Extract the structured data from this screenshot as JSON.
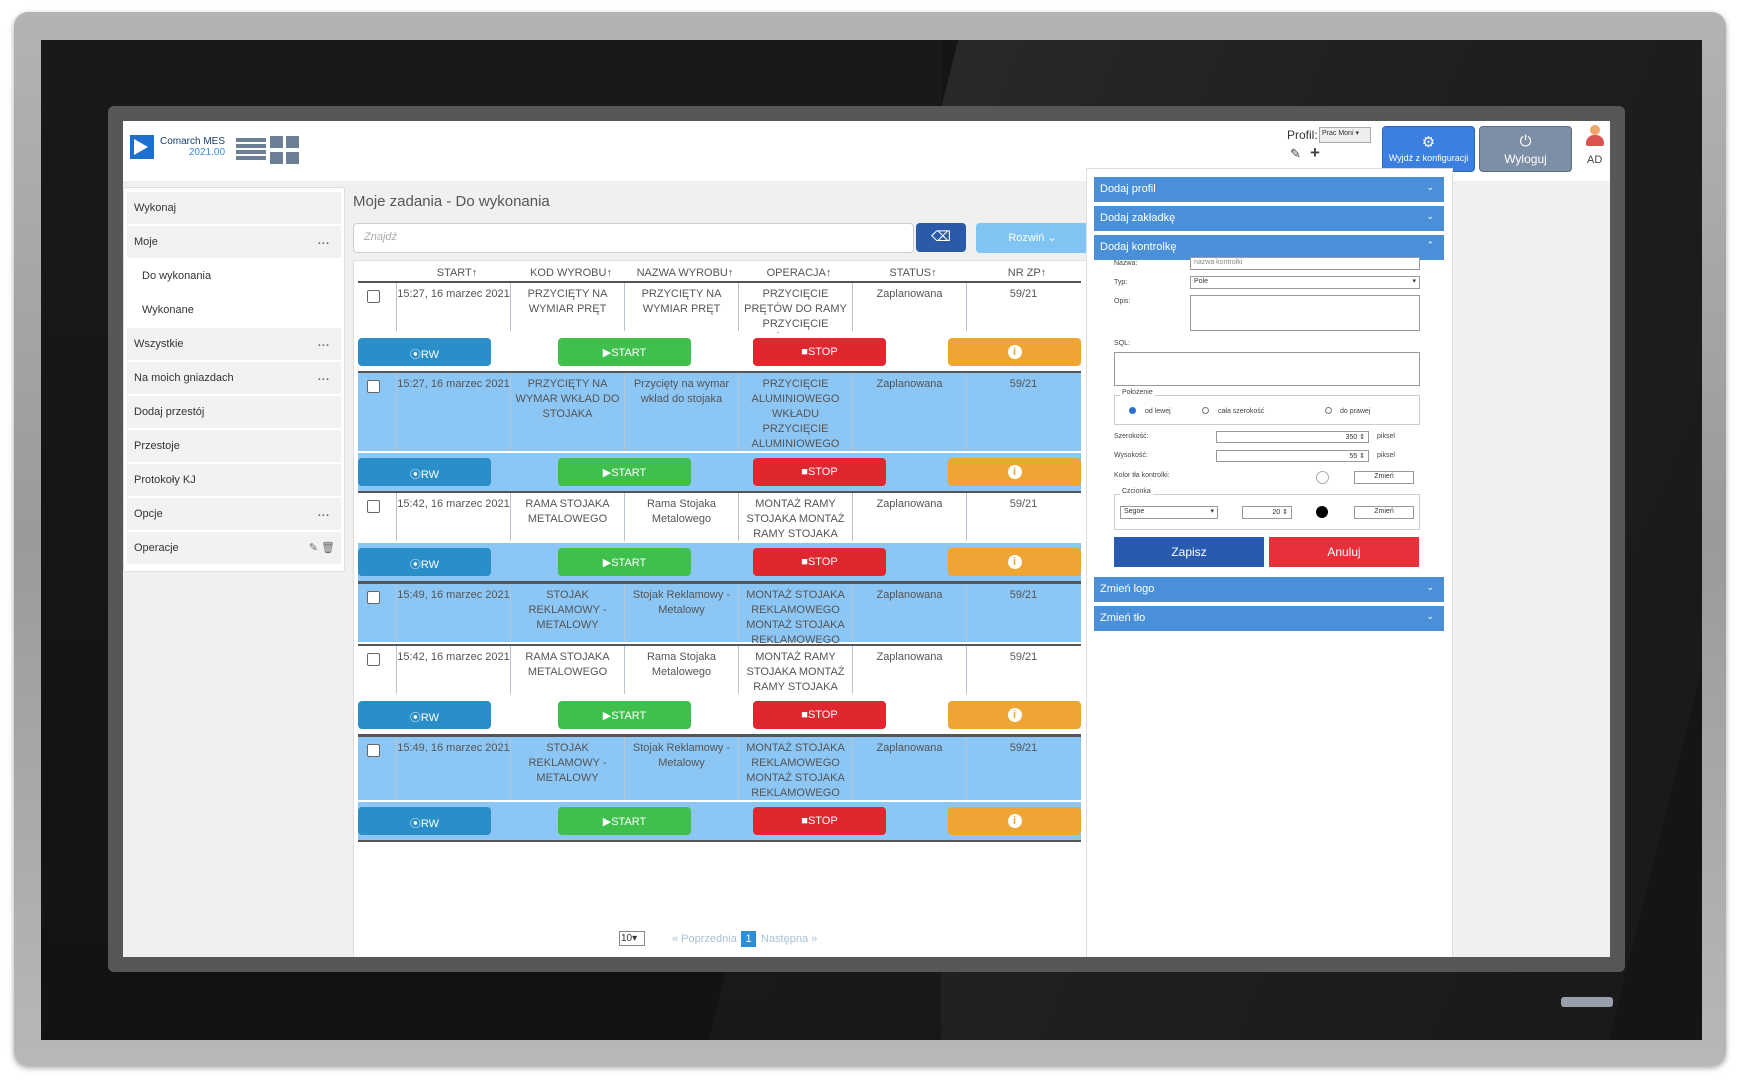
{
  "app": {
    "logo_text": "Comarch MES",
    "logo_version": "2021.00",
    "profil_label": "Profil:",
    "profil_value": "Prac Moni",
    "exit_config_label": "Wyjdź z konfiguracji",
    "logout_label": "Wyloguj",
    "user_initials": "AD"
  },
  "sidebar": {
    "items": [
      {
        "label": "Wykonaj"
      },
      {
        "label": "Moje",
        "dots": "..."
      },
      {
        "label": "Do wykonania"
      },
      {
        "label": "Wykonane"
      },
      {
        "label": "Wszystkie",
        "dots": "..."
      },
      {
        "label": "Na moich gniazdach",
        "dots": "..."
      },
      {
        "label": "Dodaj przestój"
      },
      {
        "label": "Przestoje"
      },
      {
        "label": "Protokoły KJ"
      },
      {
        "label": "Opcje",
        "dots": "..."
      },
      {
        "label": "Operacje"
      }
    ]
  },
  "main": {
    "title": "Moje zadania - Do wykonania",
    "search_placeholder": "Znajdź",
    "expand_label": "Rozwiń",
    "columns": [
      "START",
      "KOD WYROBU",
      "NAZWA WYROBU",
      "OPERACJA",
      "STATUS",
      "NR ZP"
    ],
    "rows": [
      {
        "start": "15:27, 16 marzec 2021",
        "kod": "PRZYCIĘTY NA WYMIAR PRĘT",
        "nazwa": "PRZYCIĘTY NA WYMIAR PRĘT",
        "operacja": "PRZYCIĘCIE PRĘTÓW DO RAMY PRZYCIĘCIE PRĘTÓW DO RAMY",
        "status": "Zaplanowana",
        "nrzp": "59/21"
      },
      {
        "start": "15:27, 16 marzec 2021",
        "kod": "PRZYCIĘTY NA WYMAR WKŁAD DO STOJAKA",
        "nazwa": "Przycięty na wymar wkład do stojaka",
        "operacja": "PRZYCIĘCIE ALUMINIOWEGO WKŁADU PRZYCIĘCIE ALUMINIOWEGO WKŁADU",
        "status": "Zaplanowana",
        "nrzp": "59/21"
      },
      {
        "start": "15:42, 16 marzec 2021",
        "kod": "RAMA STOJAKA METALOWEGO",
        "nazwa": "Rama Stojaka Metalowego",
        "operacja": "MONTAŻ RAMY STOJAKA MONTAŻ RAMY STOJAKA",
        "status": "Zaplanowana",
        "nrzp": "59/21"
      },
      {
        "start": "15:49, 16 marzec 2021",
        "kod": "STOJAK REKLAMOWY - METALOWY",
        "nazwa": "Stojak Reklamowy - Metalowy",
        "operacja": "MONTAŻ STOJAKA REKLAMOWEGO MONTAŻ STOJAKA REKLAMOWEGO",
        "status": "Zaplanowana",
        "nrzp": "59/21"
      },
      {
        "start": "15:42, 16 marzec 2021",
        "kod": "RAMA STOJAKA METALOWEGO",
        "nazwa": "Rama Stojaka Metalowego",
        "operacja": "MONTAŻ RAMY STOJAKA MONTAŻ RAMY STOJAKA",
        "status": "Zaplanowana",
        "nrzp": "59/21"
      },
      {
        "start": "15:49, 16 marzec 2021",
        "kod": "STOJAK REKLAMOWY - METALOWY",
        "nazwa": "Stojak Reklamowy - Metalowy",
        "operacja": "MONTAŻ STOJAKA REKLAMOWEGO MONTAŻ STOJAKA REKLAMOWEGO",
        "status": "Zaplanowana",
        "nrzp": "59/21"
      }
    ],
    "actions": {
      "rw": "RW",
      "start": "START",
      "stop": "STOP",
      "info": "i"
    },
    "pager": {
      "size": "10",
      "prev": "« Poprzednia",
      "page": "1",
      "next": "Następna »"
    }
  },
  "right": {
    "acc_profile": "Dodaj profil",
    "acc_tab": "Dodaj zakładkę",
    "acc_control": "Dodaj kontrolkę",
    "acc_logo": "Zmień logo",
    "acc_bg": "Zmień tło",
    "form": {
      "name_label": "Nazwa:",
      "name_placeholder": "nazwa kontrolki",
      "type_label": "Typ:",
      "type_value": "Pole",
      "desc_label": "Opis:",
      "sql_label": "SQL:",
      "position_label": "Położenie",
      "pos_left": "od lewej",
      "pos_full": "cała szerokość",
      "pos_right": "do prawej",
      "width_label": "Szerokość:",
      "width_value": "350",
      "height_label": "Wysokość:",
      "height_value": "55",
      "unit": "piksel",
      "bg_color_label": "Kolor tła kontrolki:",
      "change_label": "Zmień",
      "font_label": "Czcionka",
      "font_value": "Segoe",
      "font_size": "20",
      "save_label": "Zapisz",
      "cancel_label": "Anuluj"
    }
  }
}
